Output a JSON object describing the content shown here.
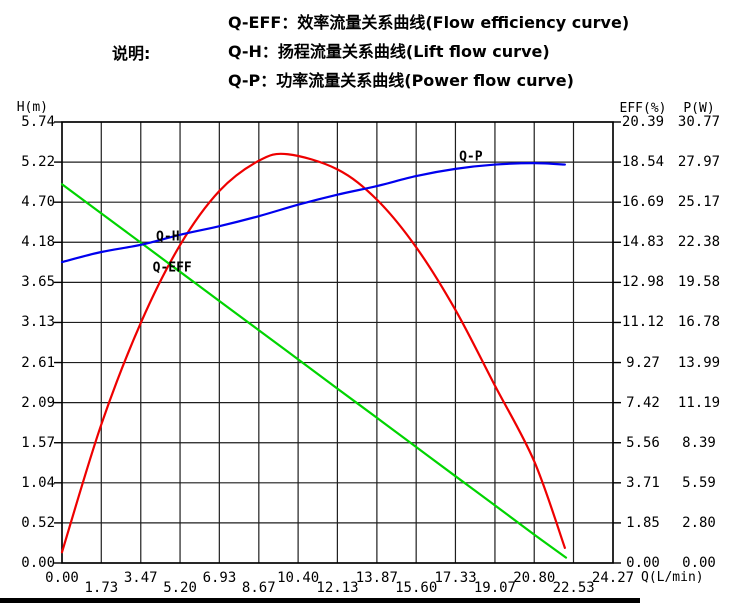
{
  "page": {
    "background": "#ffffff"
  },
  "legend": {
    "label": "说明:",
    "items": [
      {
        "name": "Q-EFF",
        "text": "Q-EFF：效率流量关系曲线(Flow efficiency curve)"
      },
      {
        "name": "Q-H",
        "text": "Q-H：扬程流量关系曲线(Lift flow curve)"
      },
      {
        "name": "Q-P",
        "text": "Q-P：功率流量关系曲线(Power flow curve)"
      }
    ]
  },
  "chart_data": {
    "type": "line",
    "grid": true,
    "x_axis": {
      "label": "Q(L/min)",
      "min": 0,
      "max": 24.27,
      "ticks": [
        "0.00",
        "1.73",
        "3.47",
        "5.20",
        "6.93",
        "8.67",
        "10.40",
        "12.13",
        "13.87",
        "15.60",
        "17.33",
        "19.07",
        "20.80",
        "22.53",
        "24.27"
      ]
    },
    "y_axes": [
      {
        "id": "h",
        "label": "H(m)",
        "side": "left",
        "min": 0,
        "max": 5.74,
        "ticks": [
          "5.74",
          "5.22",
          "4.70",
          "4.18",
          "3.65",
          "3.13",
          "2.61",
          "2.09",
          "1.57",
          "1.04",
          "0.52",
          "0.00"
        ]
      },
      {
        "id": "eff",
        "label": "EFF(%)",
        "side": "right",
        "min": 0,
        "max": 20.39,
        "ticks": [
          "20.39",
          "18.54",
          "16.69",
          "14.83",
          "12.98",
          "11.12",
          "9.27",
          "7.42",
          "5.56",
          "3.71",
          "1.85",
          "0.00"
        ]
      },
      {
        "id": "p",
        "label": "P(W)",
        "side": "right",
        "min": 0,
        "max": 30.77,
        "ticks": [
          "30.77",
          "27.97",
          "25.17",
          "22.38",
          "19.58",
          "16.78",
          "13.99",
          "11.19",
          "8.39",
          "5.59",
          "2.80",
          "0.00"
        ]
      }
    ],
    "series": [
      {
        "name": "Q-EFF",
        "axis": "eff",
        "color": "#ee0000",
        "points": [
          [
            0,
            0.5
          ],
          [
            1.73,
            6.4
          ],
          [
            3.47,
            11.1
          ],
          [
            5.2,
            14.7
          ],
          [
            6.93,
            17.2
          ],
          [
            8.67,
            18.6
          ],
          [
            9.95,
            18.9
          ],
          [
            12.13,
            18.2
          ],
          [
            13.87,
            16.8
          ],
          [
            15.6,
            14.6
          ],
          [
            17.33,
            11.7
          ],
          [
            19.07,
            8.2
          ],
          [
            20.8,
            4.7
          ],
          [
            22.15,
            0.7
          ]
        ]
      },
      {
        "name": "Q-H",
        "axis": "h",
        "color": "#00d400",
        "points": [
          [
            0,
            4.93
          ],
          [
            1.73,
            4.55
          ],
          [
            3.47,
            4.17
          ],
          [
            5.2,
            3.79
          ],
          [
            6.93,
            3.41
          ],
          [
            8.67,
            3.03
          ],
          [
            10.4,
            2.65
          ],
          [
            12.13,
            2.27
          ],
          [
            13.87,
            1.89
          ],
          [
            15.6,
            1.51
          ],
          [
            17.33,
            1.13
          ],
          [
            19.07,
            0.75
          ],
          [
            20.8,
            0.37
          ],
          [
            22.2,
            0.07
          ]
        ]
      },
      {
        "name": "Q-P",
        "axis": "p",
        "color": "#0000ee",
        "points": [
          [
            0,
            21.0
          ],
          [
            1.73,
            21.7
          ],
          [
            3.47,
            22.2
          ],
          [
            5.2,
            22.9
          ],
          [
            6.93,
            23.5
          ],
          [
            8.67,
            24.2
          ],
          [
            10.4,
            25.0
          ],
          [
            12.13,
            25.7
          ],
          [
            13.87,
            26.3
          ],
          [
            15.6,
            27.0
          ],
          [
            17.33,
            27.5
          ],
          [
            19.07,
            27.8
          ],
          [
            20.8,
            27.9
          ],
          [
            22.15,
            27.8
          ]
        ]
      }
    ],
    "annotations": [
      {
        "text": "Q-H",
        "fx": 0.192,
        "fy": 0.261
      },
      {
        "text": "Q-EFF",
        "fx": 0.2,
        "fy": 0.33
      },
      {
        "text": "Q-P",
        "fx": 0.742,
        "fy": 0.08
      }
    ]
  }
}
